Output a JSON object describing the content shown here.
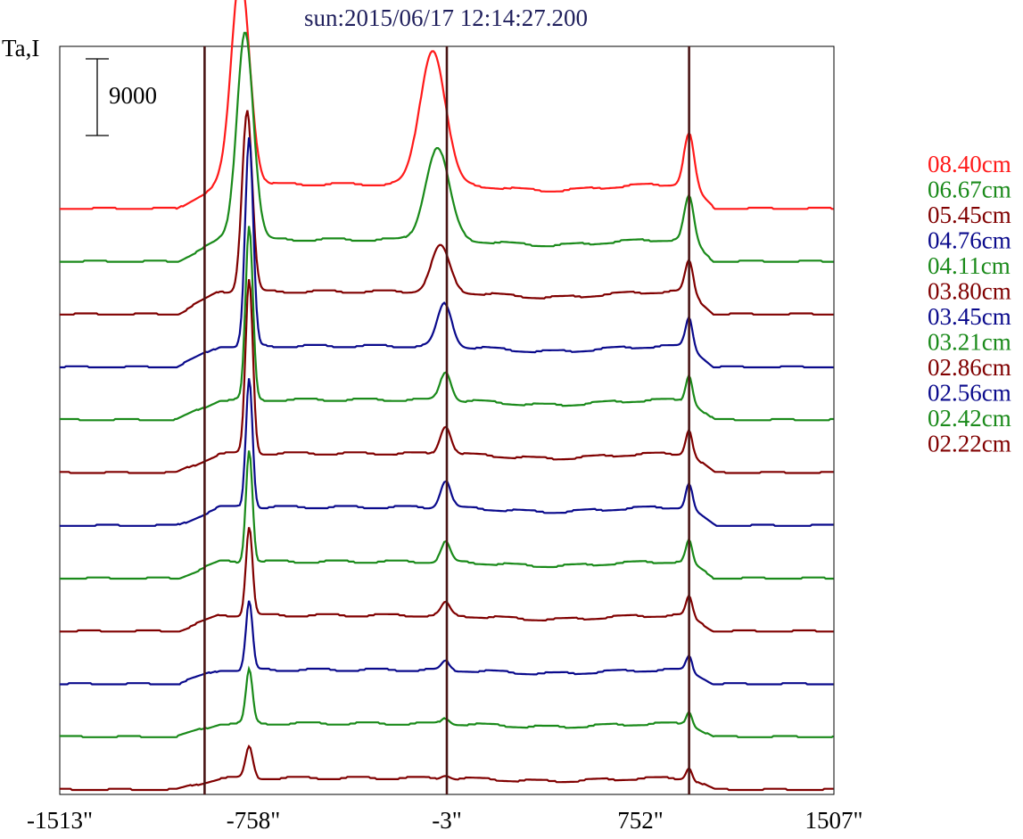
{
  "chart_data": {
    "type": "line",
    "title": "sun:2015/06/17 12:14:27.200",
    "ylabel": "Ta,I",
    "xlim": [
      -1513,
      1507
    ],
    "x_ticks": [
      -1513,
      -758,
      -3,
      752,
      1507
    ],
    "x_tick_labels": [
      "-1513\"",
      "-758\"",
      "-3\"",
      "752\"",
      "1507\""
    ],
    "scale_bar": {
      "label": "9000",
      "value": 9000
    },
    "offset_per_trace": 6200,
    "grid": false,
    "markers": [
      {
        "name": "limb-left",
        "x": -948
      },
      {
        "name": "center",
        "x": -3
      },
      {
        "name": "limb-right",
        "x": 942
      }
    ],
    "colors": {
      "red": "#ff1a1a",
      "green": "#1a8a1a",
      "maroon": "#800000",
      "navy": "#0a0a8c",
      "marker": "#4a1515",
      "title": "#1f1f5c"
    },
    "series": [
      {
        "name": "08.40cm",
        "color": "#ff1a1a",
        "offset": 68200,
        "base": 0,
        "pA": 24700,
        "wA": 50,
        "xA": -808,
        "pB": 15800,
        "wB": 70,
        "xB": -58,
        "pC": 6000,
        "wC": 28,
        "xC": 942,
        "disk": 2900
      },
      {
        "name": "06.67cm",
        "color": "#1a8a1a",
        "offset": 62000,
        "base": 0,
        "pA": 24500,
        "wA": 45,
        "xA": -790,
        "pB": 10800,
        "wB": 65,
        "xB": -40,
        "pC": 5100,
        "wC": 26,
        "xC": 942,
        "disk": 2600
      },
      {
        "name": "05.45cm",
        "color": "#800000",
        "offset": 55800,
        "base": 0,
        "pA": 21300,
        "wA": 28,
        "xA": -782,
        "pB": 5400,
        "wB": 50,
        "xB": -28,
        "pC": 3600,
        "wC": 22,
        "xC": 942,
        "disk": 2700
      },
      {
        "name": "04.76cm",
        "color": "#0a0a8c",
        "offset": 49600,
        "base": 0,
        "pA": 24400,
        "wA": 22,
        "xA": -774,
        "pB": 5000,
        "wB": 40,
        "xB": -12,
        "pC": 3400,
        "wC": 20,
        "xC": 942,
        "disk": 2500
      },
      {
        "name": "04.11cm",
        "color": "#1a8a1a",
        "offset": 43400,
        "base": 0,
        "pA": 20300,
        "wA": 20,
        "xA": -774,
        "pB": 3400,
        "wB": 30,
        "xB": -8,
        "pC": 3000,
        "wC": 18,
        "xC": 942,
        "disk": 2400
      },
      {
        "name": "03.80cm",
        "color": "#800000",
        "offset": 37200,
        "base": 0,
        "pA": 20500,
        "wA": 20,
        "xA": -774,
        "pB": 3300,
        "wB": 30,
        "xB": -8,
        "pC": 2900,
        "wC": 18,
        "xC": 942,
        "disk": 2300
      },
      {
        "name": "03.45cm",
        "color": "#0a0a8c",
        "offset": 31000,
        "base": 0,
        "pA": 15300,
        "wA": 18,
        "xA": -774,
        "pB": 3200,
        "wB": 28,
        "xB": -8,
        "pC": 2800,
        "wC": 18,
        "xC": 942,
        "disk": 2200
      },
      {
        "name": "03.21cm",
        "color": "#1a8a1a",
        "offset": 24800,
        "base": 0,
        "pA": 13200,
        "wA": 18,
        "xA": -774,
        "pB": 2300,
        "wB": 26,
        "xB": -8,
        "pC": 2500,
        "wC": 17,
        "xC": 942,
        "disk": 2000
      },
      {
        "name": "02.86cm",
        "color": "#800000",
        "offset": 18600,
        "base": 0,
        "pA": 10500,
        "wA": 18,
        "xA": -774,
        "pB": 1500,
        "wB": 24,
        "xB": -8,
        "pC": 2200,
        "wC": 17,
        "xC": 942,
        "disk": 1900
      },
      {
        "name": "02.56cm",
        "color": "#0a0a8c",
        "offset": 12400,
        "base": 0,
        "pA": 8000,
        "wA": 18,
        "xA": -774,
        "pB": 1000,
        "wB": 22,
        "xB": -8,
        "pC": 1700,
        "wC": 16,
        "xC": 942,
        "disk": 1700
      },
      {
        "name": "02.42cm",
        "color": "#1a8a1a",
        "offset": 6200,
        "base": 0,
        "pA": 6300,
        "wA": 18,
        "xA": -774,
        "pB": 700,
        "wB": 22,
        "xB": -8,
        "pC": 1500,
        "wC": 16,
        "xC": 942,
        "disk": 1600
      },
      {
        "name": "02.22cm",
        "color": "#800000",
        "offset": 0,
        "base": 0,
        "pA": 3600,
        "wA": 20,
        "xA": -774,
        "pB": 400,
        "wB": 24,
        "xB": -8,
        "pC": 1300,
        "wC": 16,
        "xC": 942,
        "disk": 1400
      }
    ]
  }
}
